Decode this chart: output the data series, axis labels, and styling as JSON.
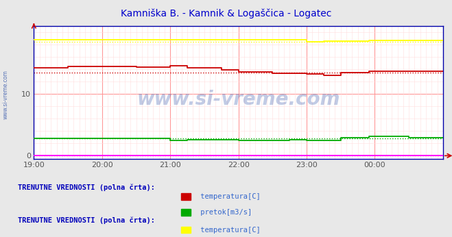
{
  "title": "Kamniška B. - Kamnik & Logaščica - Logatec",
  "title_color": "#0000cc",
  "title_fontsize": 10,
  "bg_color": "#e8e8e8",
  "plot_bg_color": "#ffffff",
  "xticklabels": [
    "19:00",
    "20:00",
    "21:00",
    "22:00",
    "23:00",
    "00:00"
  ],
  "xtick_positions": [
    0,
    72,
    144,
    216,
    288,
    360
  ],
  "yticks": [
    0,
    10
  ],
  "ylim": [
    -0.5,
    21
  ],
  "xlim": [
    0,
    432
  ],
  "grid_color": "#ff9999",
  "grid_color_minor": "#ffdddd",
  "watermark": "www.si-vreme.com",
  "watermark_color": "#3355aa",
  "watermark_alpha": 0.3,
  "legend1_label": "TRENUTNE VREDNOSTI (polna črta):",
  "legend2_label": "TRENUTNE VREDNOSTI (polna črta):",
  "legend_color": "#0000bb",
  "legend_fontsize": 7.5,
  "axis_color": "#0000aa",
  "series": {
    "kamnik_temp": {
      "color": "#cc0000",
      "dotted_value": 13.5,
      "line_points": [
        [
          0,
          14.2
        ],
        [
          36,
          14.2
        ],
        [
          36,
          14.5
        ],
        [
          108,
          14.5
        ],
        [
          108,
          14.3
        ],
        [
          144,
          14.3
        ],
        [
          144,
          14.6
        ],
        [
          162,
          14.6
        ],
        [
          162,
          14.2
        ],
        [
          198,
          14.2
        ],
        [
          198,
          13.9
        ],
        [
          216,
          13.9
        ],
        [
          216,
          13.6
        ],
        [
          252,
          13.6
        ],
        [
          252,
          13.4
        ],
        [
          288,
          13.4
        ],
        [
          288,
          13.2
        ],
        [
          306,
          13.2
        ],
        [
          306,
          13.0
        ],
        [
          324,
          13.0
        ],
        [
          324,
          13.5
        ],
        [
          354,
          13.5
        ],
        [
          354,
          13.7
        ],
        [
          432,
          13.7
        ]
      ]
    },
    "kamnik_pretok": {
      "color": "#00aa00",
      "dotted_value": 2.8,
      "line_points": [
        [
          0,
          2.8
        ],
        [
          144,
          2.8
        ],
        [
          144,
          2.5
        ],
        [
          162,
          2.5
        ],
        [
          162,
          2.6
        ],
        [
          198,
          2.6
        ],
        [
          198,
          2.55
        ],
        [
          216,
          2.55
        ],
        [
          216,
          2.5
        ],
        [
          270,
          2.5
        ],
        [
          270,
          2.55
        ],
        [
          288,
          2.55
        ],
        [
          288,
          2.5
        ],
        [
          324,
          2.5
        ],
        [
          324,
          2.9
        ],
        [
          354,
          2.9
        ],
        [
          354,
          3.1
        ],
        [
          396,
          3.1
        ],
        [
          396,
          2.95
        ],
        [
          432,
          2.95
        ]
      ]
    },
    "logatec_temp": {
      "color": "#ffff00",
      "dotted_value": 18.5,
      "line_points": [
        [
          0,
          18.8
        ],
        [
          288,
          18.8
        ],
        [
          288,
          18.5
        ],
        [
          306,
          18.5
        ],
        [
          306,
          18.6
        ],
        [
          354,
          18.6
        ],
        [
          354,
          18.7
        ],
        [
          432,
          18.7
        ]
      ]
    },
    "logatec_pretok": {
      "color": "#ff00ff",
      "dotted_value": 0.05,
      "line_points": [
        [
          0,
          0.05
        ],
        [
          432,
          0.05
        ]
      ]
    }
  }
}
